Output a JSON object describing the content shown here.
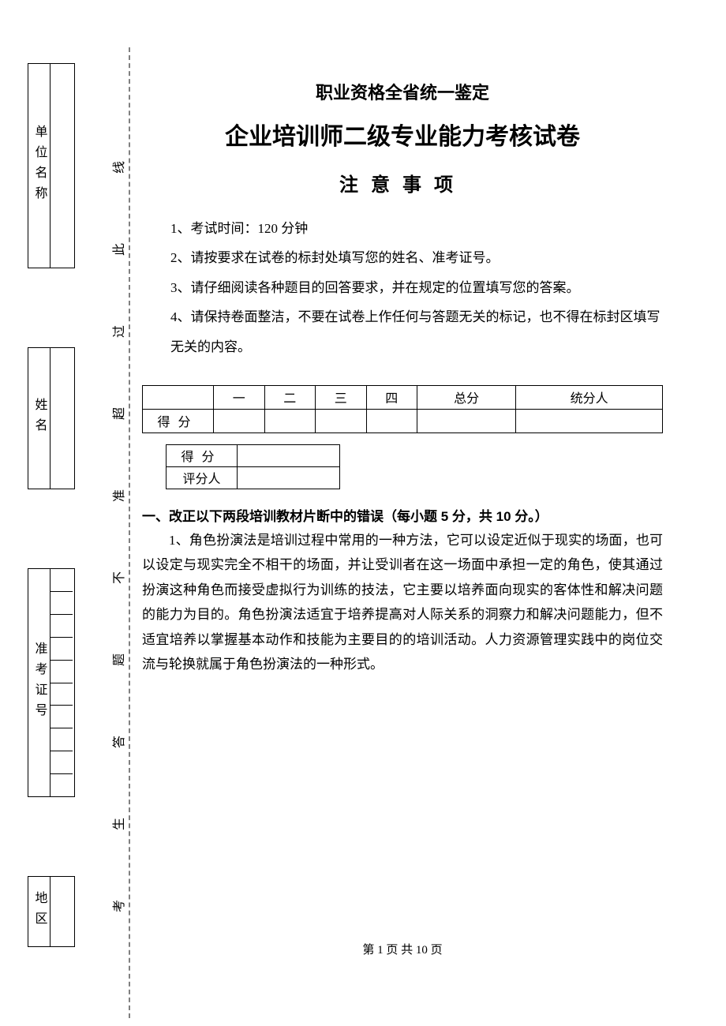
{
  "binding": {
    "unit_label": "单位名称",
    "name_label": "姓名",
    "ticket_label": "准考证号",
    "region_label": "地区"
  },
  "cut_line_chars": [
    "线",
    "此",
    "过",
    "超",
    "准",
    "不",
    "题",
    "答",
    "生",
    "考"
  ],
  "header": {
    "supertitle": "职业资格全省统一鉴定",
    "title": "企业培训师二级专业能力考核试卷",
    "notice_heading": "注意事项"
  },
  "notices": {
    "n1": "1、考试时间：120 分钟",
    "n2": "2、请按要求在试卷的标封处填写您的姓名、准考证号。",
    "n3": "3、请仔细阅读各种题目的回答要求，并在规定的位置填写您的答案。",
    "n4": "4、请保持卷面整洁，不要在试卷上作任何与答题无关的标记，也不得在标封区填写无关的内容。"
  },
  "score_table": {
    "columns": [
      "一",
      "二",
      "三",
      "四",
      "总分",
      "统分人"
    ],
    "row_label": "得分"
  },
  "small_score": {
    "row1": "得分",
    "row2": "评分人"
  },
  "section1": {
    "heading": "一、改正以下两段培训教材片断中的错误（每小题 5 分，共 10 分。）",
    "q1": "1、角色扮演法是培训过程中常用的一种方法，它可以设定近似于现实的场面，也可以设定与现实完全不相干的场面，并让受训者在这一场面中承担一定的角色，使其通过扮演这种角色而接受虚拟行为训练的技法，它主要以培养面向现实的客体性和解决问题的能力为目的。角色扮演法适宜于培养提高对人际关系的洞察力和解决问题能力，但不适宜培养以掌握基本动作和技能为主要目的的培训活动。人力资源管理实践中的岗位交流与轮换就属于角色扮演法的一种形式。"
  },
  "footer": {
    "text": "第 1 页 共 10 页"
  },
  "colors": {
    "text": "#000000",
    "background": "#ffffff",
    "dash": "#808080"
  }
}
